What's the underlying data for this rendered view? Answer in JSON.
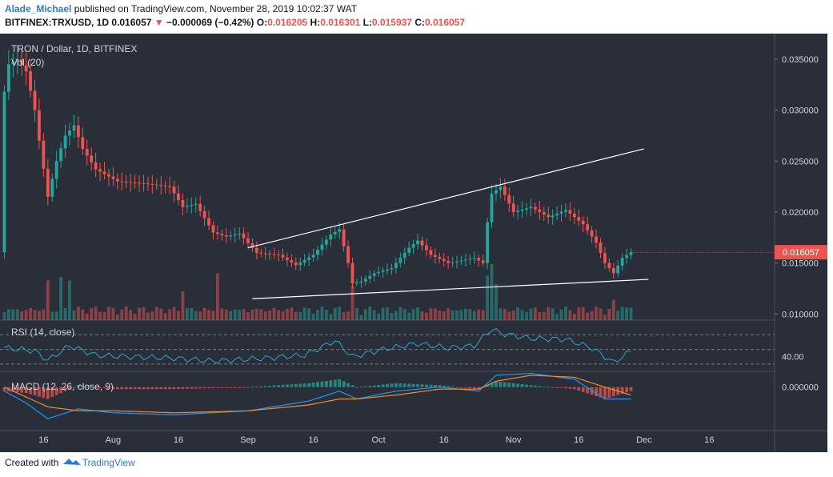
{
  "header": {
    "author": "Alade_Michael",
    "published_text": "published on TradingView.com, November 28, 2019 10:02:37 WAT",
    "symbol": "BITFINEX:TRXUSD, 1D",
    "last": "0.016057",
    "arrow": "▼",
    "change": "−0.000069 (−0.42%)",
    "o_label": "O:",
    "o_value": "0.016205",
    "h_label": "H:",
    "h_value": "0.016301",
    "l_label": "L:",
    "l_value": "0.015937",
    "c_label": "C:",
    "c_value": "0.016057"
  },
  "legend": {
    "title": "TRON / Dollar, 1D, BITFINEX",
    "volume": "Vol (20)",
    "rsi": "RSI (14, close)",
    "macd": "MACD (12, 26, close, 9)"
  },
  "footer": {
    "created_with": "Created with",
    "brand": "TradingView"
  },
  "colors": {
    "background": "#2a2e39",
    "up": "#26a69a",
    "down": "#ef5350",
    "rsi": "#2ca8c9",
    "macd": "#2196f3",
    "signal": "#f28c28",
    "price_label": "#ef5350"
  },
  "chart_data": [
    {
      "type": "candlestick",
      "title": "TRON / Dollar, 1D, BITFINEX",
      "x_ticks": [
        "16",
        "Aug",
        "16",
        "Sep",
        "16",
        "Oct",
        "16",
        "Nov",
        "16",
        "Dec",
        "16"
      ],
      "x_range": [
        "2019-07-06",
        "2019-12-31"
      ],
      "y_ticks": [
        "0.035000",
        "0.030000",
        "0.025000",
        "0.020000",
        "0.015000",
        "0.010000"
      ],
      "ylim": [
        0.0094,
        0.0375
      ],
      "last_price_label": "0.016057",
      "close_path": [
        [
          "2019-07-07",
          0.0318
        ],
        [
          "2019-07-08",
          0.0345
        ],
        [
          "2019-07-10",
          0.035
        ],
        [
          "2019-07-12",
          0.0338
        ],
        [
          "2019-07-14",
          0.03
        ],
        [
          "2019-07-15",
          0.027
        ],
        [
          "2019-07-17",
          0.0215
        ],
        [
          "2019-07-19",
          0.025
        ],
        [
          "2019-07-21",
          0.0275
        ],
        [
          "2019-07-23",
          0.0285
        ],
        [
          "2019-07-25",
          0.0262
        ],
        [
          "2019-07-28",
          0.0242
        ],
        [
          "2019-08-02",
          0.023
        ],
        [
          "2019-08-08",
          0.0228
        ],
        [
          "2019-08-14",
          0.0225
        ],
        [
          "2019-08-17",
          0.0205
        ],
        [
          "2019-08-20",
          0.0208
        ],
        [
          "2019-08-24",
          0.018
        ],
        [
          "2019-08-27",
          0.0176
        ],
        [
          "2019-08-30",
          0.0179
        ],
        [
          "2019-09-03",
          0.016
        ],
        [
          "2019-09-08",
          0.0158
        ],
        [
          "2019-09-12",
          0.0148
        ],
        [
          "2019-09-16",
          0.0158
        ],
        [
          "2019-09-20",
          0.0178
        ],
        [
          "2019-09-22",
          0.0183
        ],
        [
          "2019-09-24",
          0.015
        ],
        [
          "2019-09-25",
          0.013
        ],
        [
          "2019-09-27",
          0.0132
        ],
        [
          "2019-09-30",
          0.014
        ],
        [
          "2019-10-04",
          0.0145
        ],
        [
          "2019-10-08",
          0.0165
        ],
        [
          "2019-10-10",
          0.0172
        ],
        [
          "2019-10-13",
          0.0158
        ],
        [
          "2019-10-17",
          0.015
        ],
        [
          "2019-10-23",
          0.0155
        ],
        [
          "2019-10-25",
          0.015
        ],
        [
          "2019-10-26",
          0.019
        ],
        [
          "2019-10-27",
          0.0218
        ],
        [
          "2019-10-29",
          0.0225
        ],
        [
          "2019-11-01",
          0.02
        ],
        [
          "2019-11-05",
          0.0205
        ],
        [
          "2019-11-09",
          0.0195
        ],
        [
          "2019-11-13",
          0.0202
        ],
        [
          "2019-11-17",
          0.0188
        ],
        [
          "2019-11-20",
          0.017
        ],
        [
          "2019-11-22",
          0.015
        ],
        [
          "2019-11-24",
          0.014
        ],
        [
          "2019-11-26",
          0.0155
        ],
        [
          "2019-11-28",
          0.01606
        ]
      ],
      "trendlines": [
        {
          "name": "upper",
          "from": [
            "2019-09-01",
            0.0165
          ],
          "to": [
            "2019-12-01",
            0.0262
          ]
        },
        {
          "name": "lower",
          "from": [
            "2019-09-02",
            0.0115
          ],
          "to": [
            "2019-12-02",
            0.0134
          ]
        }
      ]
    },
    {
      "type": "bar",
      "title": "Vol (20)",
      "note": "volume columns colored by candle direction; values relative",
      "peaks": [
        [
          "2019-07-17",
          0.55
        ],
        [
          "2019-07-20",
          0.6
        ],
        [
          "2019-07-22",
          0.55
        ],
        [
          "2019-08-17",
          0.4
        ],
        [
          "2019-08-25",
          0.65
        ],
        [
          "2019-09-25",
          0.48
        ],
        [
          "2019-10-26",
          0.62
        ],
        [
          "2019-10-27",
          0.78
        ],
        [
          "2019-10-28",
          0.5
        ],
        [
          "2019-11-24",
          0.28
        ],
        [
          "2019-11-26",
          0.18
        ]
      ]
    },
    {
      "type": "line",
      "title": "RSI (14, close)",
      "y_tick": "40.00",
      "ylim": [
        20,
        90
      ],
      "bands": [
        70,
        50,
        30
      ],
      "x": [
        "2019-07-07",
        "2019-07-14",
        "2019-07-17",
        "2019-07-22",
        "2019-07-28",
        "2019-08-05",
        "2019-08-15",
        "2019-08-24",
        "2019-09-05",
        "2019-09-14",
        "2019-09-21",
        "2019-09-25",
        "2019-10-02",
        "2019-10-10",
        "2019-10-17",
        "2019-10-23",
        "2019-10-27",
        "2019-10-29",
        "2019-11-05",
        "2019-11-13",
        "2019-11-19",
        "2019-11-24",
        "2019-11-28"
      ],
      "values": [
        52,
        48,
        35,
        55,
        42,
        40,
        38,
        34,
        38,
        42,
        62,
        40,
        50,
        58,
        52,
        55,
        78,
        72,
        65,
        64,
        52,
        32,
        48
      ]
    },
    {
      "type": "line",
      "title": "MACD (12, 26, close, 9)",
      "y_tick": "0.000000",
      "ylim": [
        -0.0022,
        0.0008
      ],
      "x": [
        "2019-07-07",
        "2019-07-12",
        "2019-07-17",
        "2019-07-24",
        "2019-08-01",
        "2019-08-15",
        "2019-09-01",
        "2019-09-15",
        "2019-09-22",
        "2019-09-26",
        "2019-10-05",
        "2019-10-15",
        "2019-10-24",
        "2019-10-28",
        "2019-11-05",
        "2019-11-15",
        "2019-11-22",
        "2019-11-28"
      ],
      "series": [
        {
          "name": "MACD",
          "values": [
            -0.0002,
            -0.0008,
            -0.0016,
            -0.0011,
            -0.0013,
            -0.0014,
            -0.0012,
            -0.0007,
            -0.0002,
            -0.0006,
            -0.0002,
            0.0,
            -0.0002,
            0.0006,
            0.0007,
            0.0004,
            -0.0006,
            -0.0006
          ]
        },
        {
          "name": "Signal",
          "values": [
            0.0,
            -0.0005,
            -0.001,
            -0.0012,
            -0.0012,
            -0.0013,
            -0.0012,
            -0.0009,
            -0.0006,
            -0.0006,
            -0.0004,
            -0.0001,
            -0.0001,
            0.0003,
            0.0006,
            0.0005,
            0.0,
            -0.0004
          ]
        }
      ]
    }
  ]
}
